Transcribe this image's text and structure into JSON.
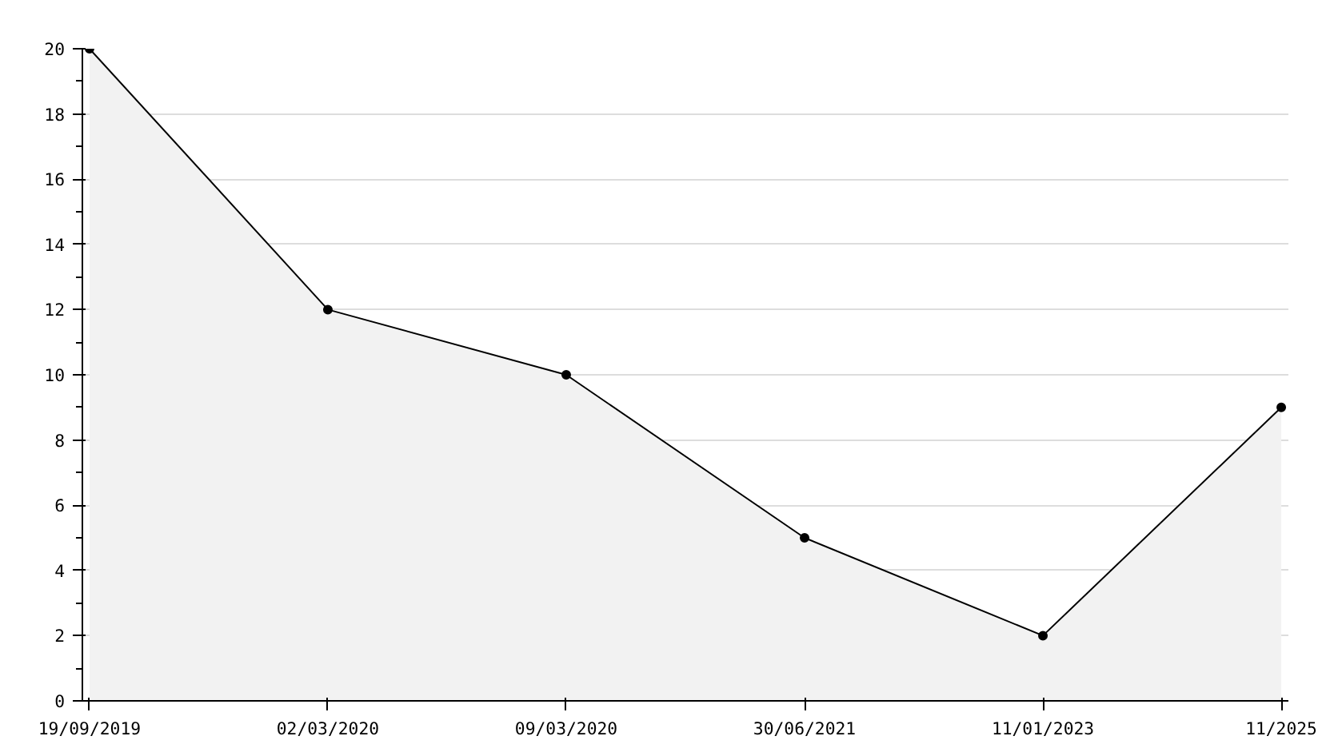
{
  "chart_data": {
    "type": "area",
    "categories": [
      "19/09/2019",
      "02/03/2020",
      "09/03/2020",
      "30/06/2021",
      "11/01/2023",
      "11/2025"
    ],
    "series": [
      {
        "color": "#000000",
        "values": [
          20,
          12,
          10,
          5,
          2,
          9
        ]
      }
    ],
    "ylim": [
      0,
      20
    ],
    "yticks": [
      0,
      2,
      4,
      6,
      8,
      10,
      12,
      14,
      16,
      18,
      20
    ],
    "grid": "y",
    "marker": "circle",
    "line_style": "solid"
  }
}
